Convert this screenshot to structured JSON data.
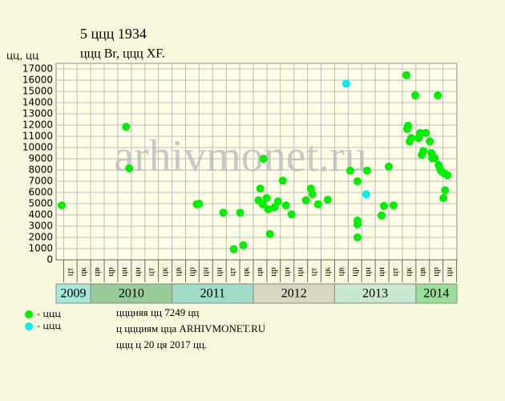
{
  "chart_data": {
    "type": "scatter",
    "title": "5 ццц 1934",
    "subtitle": "ццц Br, ццц XF.",
    "y_label": "цц, цц",
    "watermark": "arhivmonet.ru",
    "xlim": [
      2009.575,
      2014.504
    ],
    "ylim": [
      0,
      17500
    ],
    "yticks": [
      0,
      1000,
      2000,
      3000,
      4000,
      5000,
      6000,
      7000,
      8000,
      9000,
      10000,
      11000,
      12000,
      13000,
      14000,
      15000,
      16000,
      17000
    ],
    "xticks": [
      2009.667,
      2009.833,
      2010,
      2010.167,
      2010.333,
      2010.5,
      2010.667,
      2010.833,
      2011,
      2011.167,
      2011.333,
      2011.5,
      2011.667,
      2011.833,
      2012,
      2012.167,
      2012.333,
      2012.5,
      2012.667,
      2012.833,
      2013,
      2013.167,
      2013.333,
      2013.5,
      2013.667,
      2013.833,
      2014,
      2014.167,
      2014.333,
      2014.5
    ],
    "month_labels": [
      "цт",
      "цк",
      "цв",
      "цр",
      "цн",
      "цн",
      "цт",
      "цк",
      "цв",
      "цр",
      "цн",
      "цн",
      "цт",
      "цк",
      "цв",
      "цр",
      "цн",
      "цн",
      "цт",
      "цк",
      "цв",
      "цр",
      "цн",
      "цн",
      "цт",
      "цк",
      "цв",
      "цр",
      "цн"
    ],
    "year_bands": [
      {
        "label": "2009",
        "start": 2009.575,
        "end": 2010,
        "color": "#a8e8d8"
      },
      {
        "label": "2010",
        "start": 2010,
        "end": 2011,
        "color": "#99cc99"
      },
      {
        "label": "2011",
        "start": 2011,
        "end": 2012,
        "color": "#a0dcc8"
      },
      {
        "label": "2012",
        "start": 2012,
        "end": 2013,
        "color": "#d8d8c0"
      },
      {
        "label": "2013",
        "start": 2013,
        "end": 2014,
        "color": "#c8e8d0"
      },
      {
        "label": "2014",
        "start": 2014,
        "end": 2014.504,
        "color": "#99dd99"
      }
    ],
    "grid": true,
    "series": [
      {
        "name": "- ццц",
        "color": "#00ee00",
        "x": [
          2009.644,
          2010.435,
          2010.474,
          2011.304,
          2011.334,
          2011.63,
          2011.759,
          2011.838,
          2011.877,
          2012.085,
          2012.065,
          2012.115,
          2012.125,
          2012.164,
          2012.184,
          2012.204,
          2012.263,
          2012.303,
          2012.362,
          2012.401,
          2012.47,
          2012.648,
          2012.708,
          2012.727,
          2012.797,
          2012.915,
          2013.192,
          2013.281,
          2013.281,
          2013.281,
          2013.281,
          2013.399,
          2013.577,
          2013.607,
          2013.666,
          2013.725,
          2013.883,
          2013.893,
          2013.903,
          2013.923,
          2013.943,
          2013.992,
          2014.032,
          2014.052,
          2014.072,
          2014.091,
          2014.121,
          2014.17,
          2014.19,
          2014.2,
          2014.229,
          2014.269,
          2014.279,
          2014.299,
          2014.338,
          2014.358,
          2014.318,
          2014.348,
          2014.387
        ],
        "values": [
          4850,
          11850,
          8150,
          4950,
          5000,
          4200,
          950,
          4200,
          1300,
          6350,
          5300,
          4950,
          9000,
          5500,
          4500,
          2300,
          4700,
          5200,
          7050,
          4850,
          4050,
          5300,
          6350,
          5850,
          4950,
          5350,
          7950,
          7000,
          3500,
          3150,
          2000,
          7950,
          3950,
          4800,
          8300,
          4850,
          16450,
          11650,
          11950,
          10550,
          10850,
          14650,
          10850,
          11300,
          9350,
          9700,
          11300,
          10550,
          9500,
          9050,
          9050,
          14650,
          8450,
          8050,
          5500,
          6200,
          7850,
          7700,
          7550
        ]
      },
      {
        "name": "- ццц",
        "color": "#00eeee",
        "x": [
          2013.142,
          2013.389
        ],
        "values": [
          15700,
          5850
        ]
      }
    ],
    "footer": [
      "цццняя цц 7249 цц",
      "ц ццциям цца ARHIVMONET.RU",
      "ццц ц 20 ця 2017 цц."
    ]
  }
}
